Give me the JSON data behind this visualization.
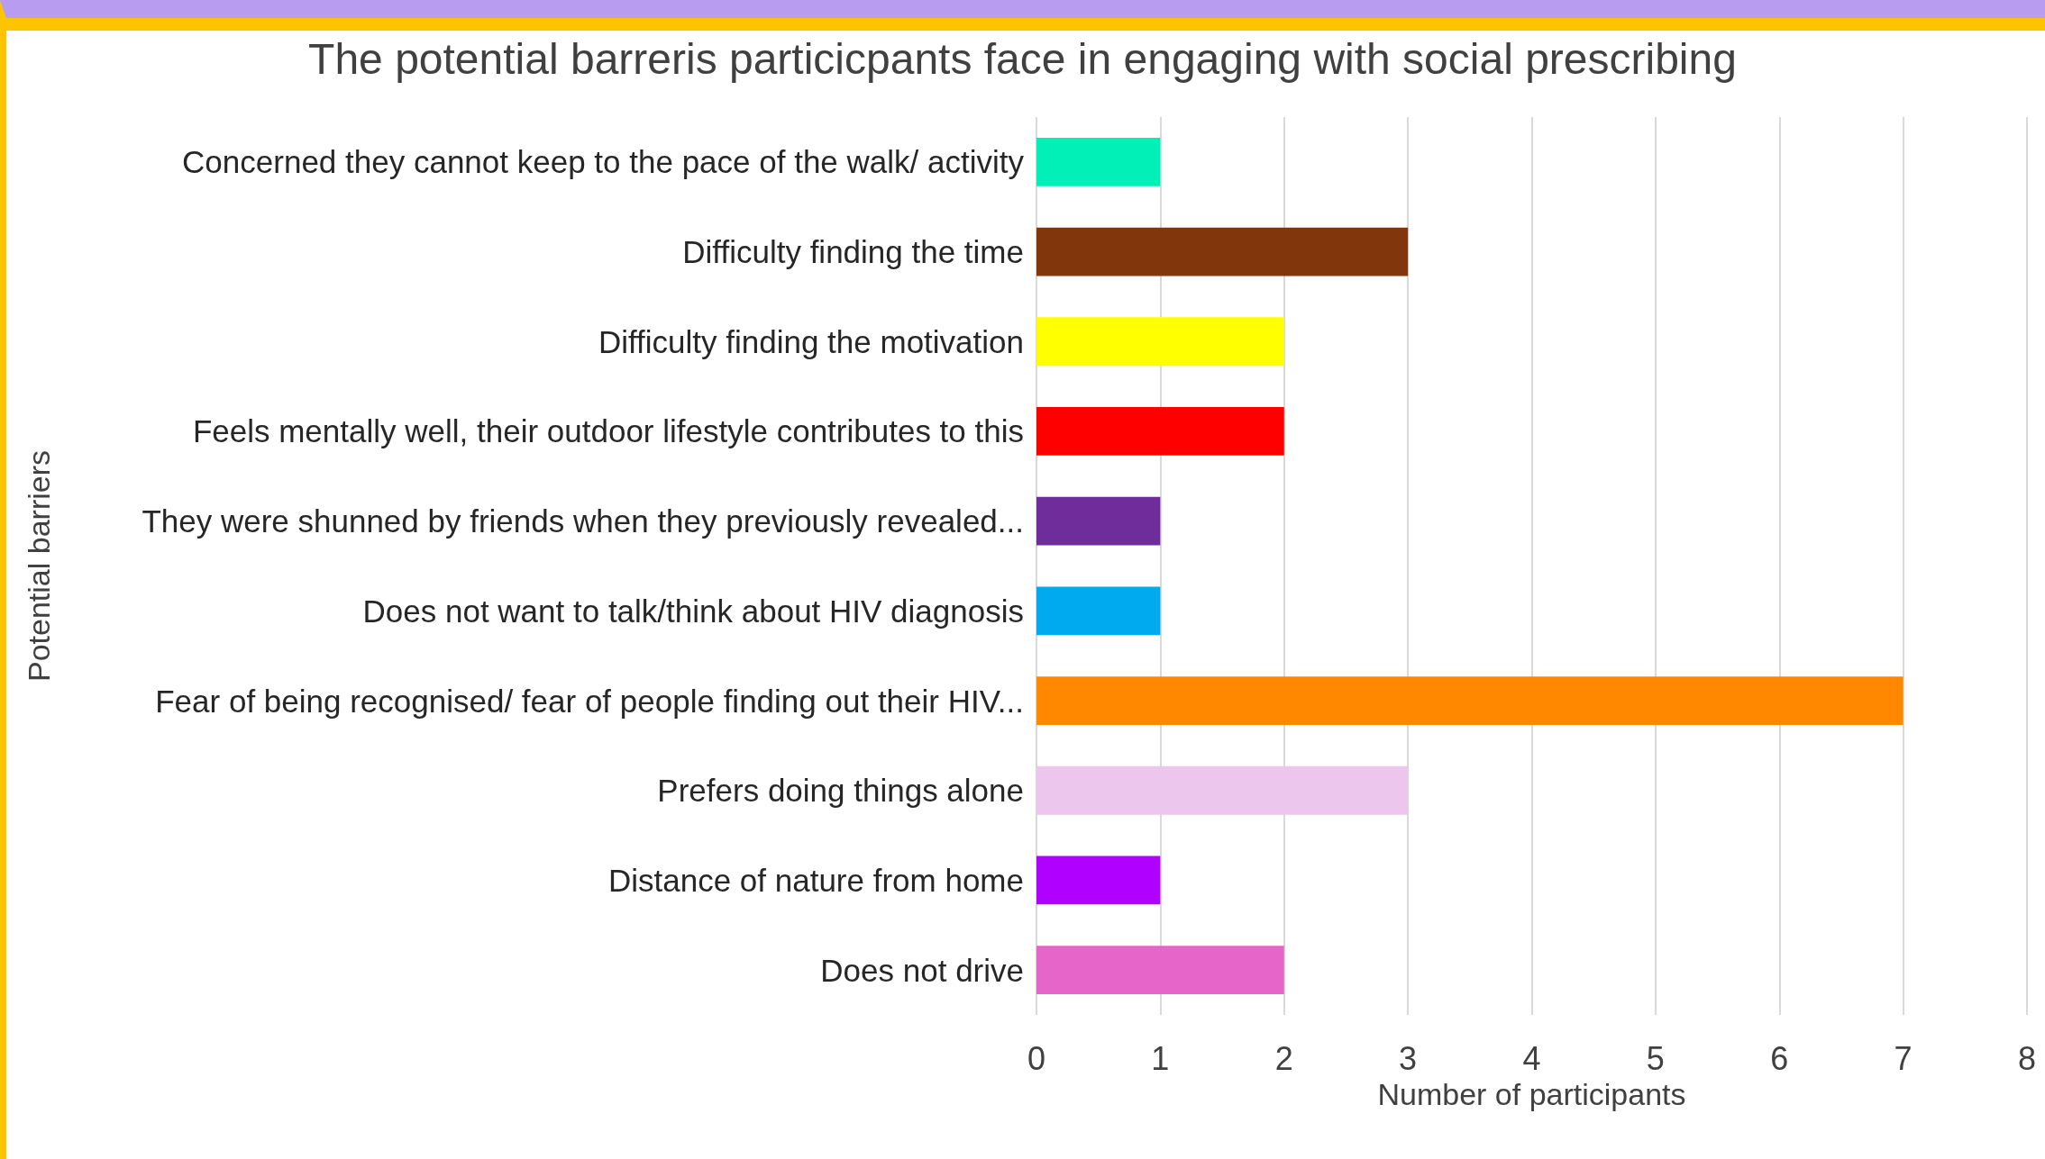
{
  "chart_data": {
    "type": "bar",
    "orientation": "horizontal",
    "title": "The potential barreris particicpants face in engaging with social prescribing",
    "xlabel": "Number of participants",
    "ylabel": "Potential barriers",
    "categories": [
      "Concerned they cannot keep to the pace of the walk/ activity",
      "Difficulty finding the time",
      "Difficulty finding the motivation",
      "Feels mentally well, their outdoor lifestyle contributes to this",
      "They were shunned by friends when they previously revealed...",
      "Does not want to talk/think about HIV diagnosis",
      "Fear of being recognised/ fear of people finding out their HIV...",
      "Prefers doing things alone",
      "Distance of nature from home",
      "Does not drive"
    ],
    "values": [
      1,
      3,
      2,
      2,
      1,
      1,
      7,
      3,
      1,
      2
    ],
    "colors": [
      "#00f0b8",
      "#82360b",
      "#ffff00",
      "#ff0000",
      "#6f2c9b",
      "#00aaee",
      "#ff8800",
      "#ecc6ec",
      "#b000ff",
      "#e665c8"
    ],
    "xlim": [
      0,
      8
    ],
    "xticks": [
      0,
      1,
      2,
      3,
      4,
      5,
      6,
      7,
      8
    ],
    "grid": "x"
  }
}
